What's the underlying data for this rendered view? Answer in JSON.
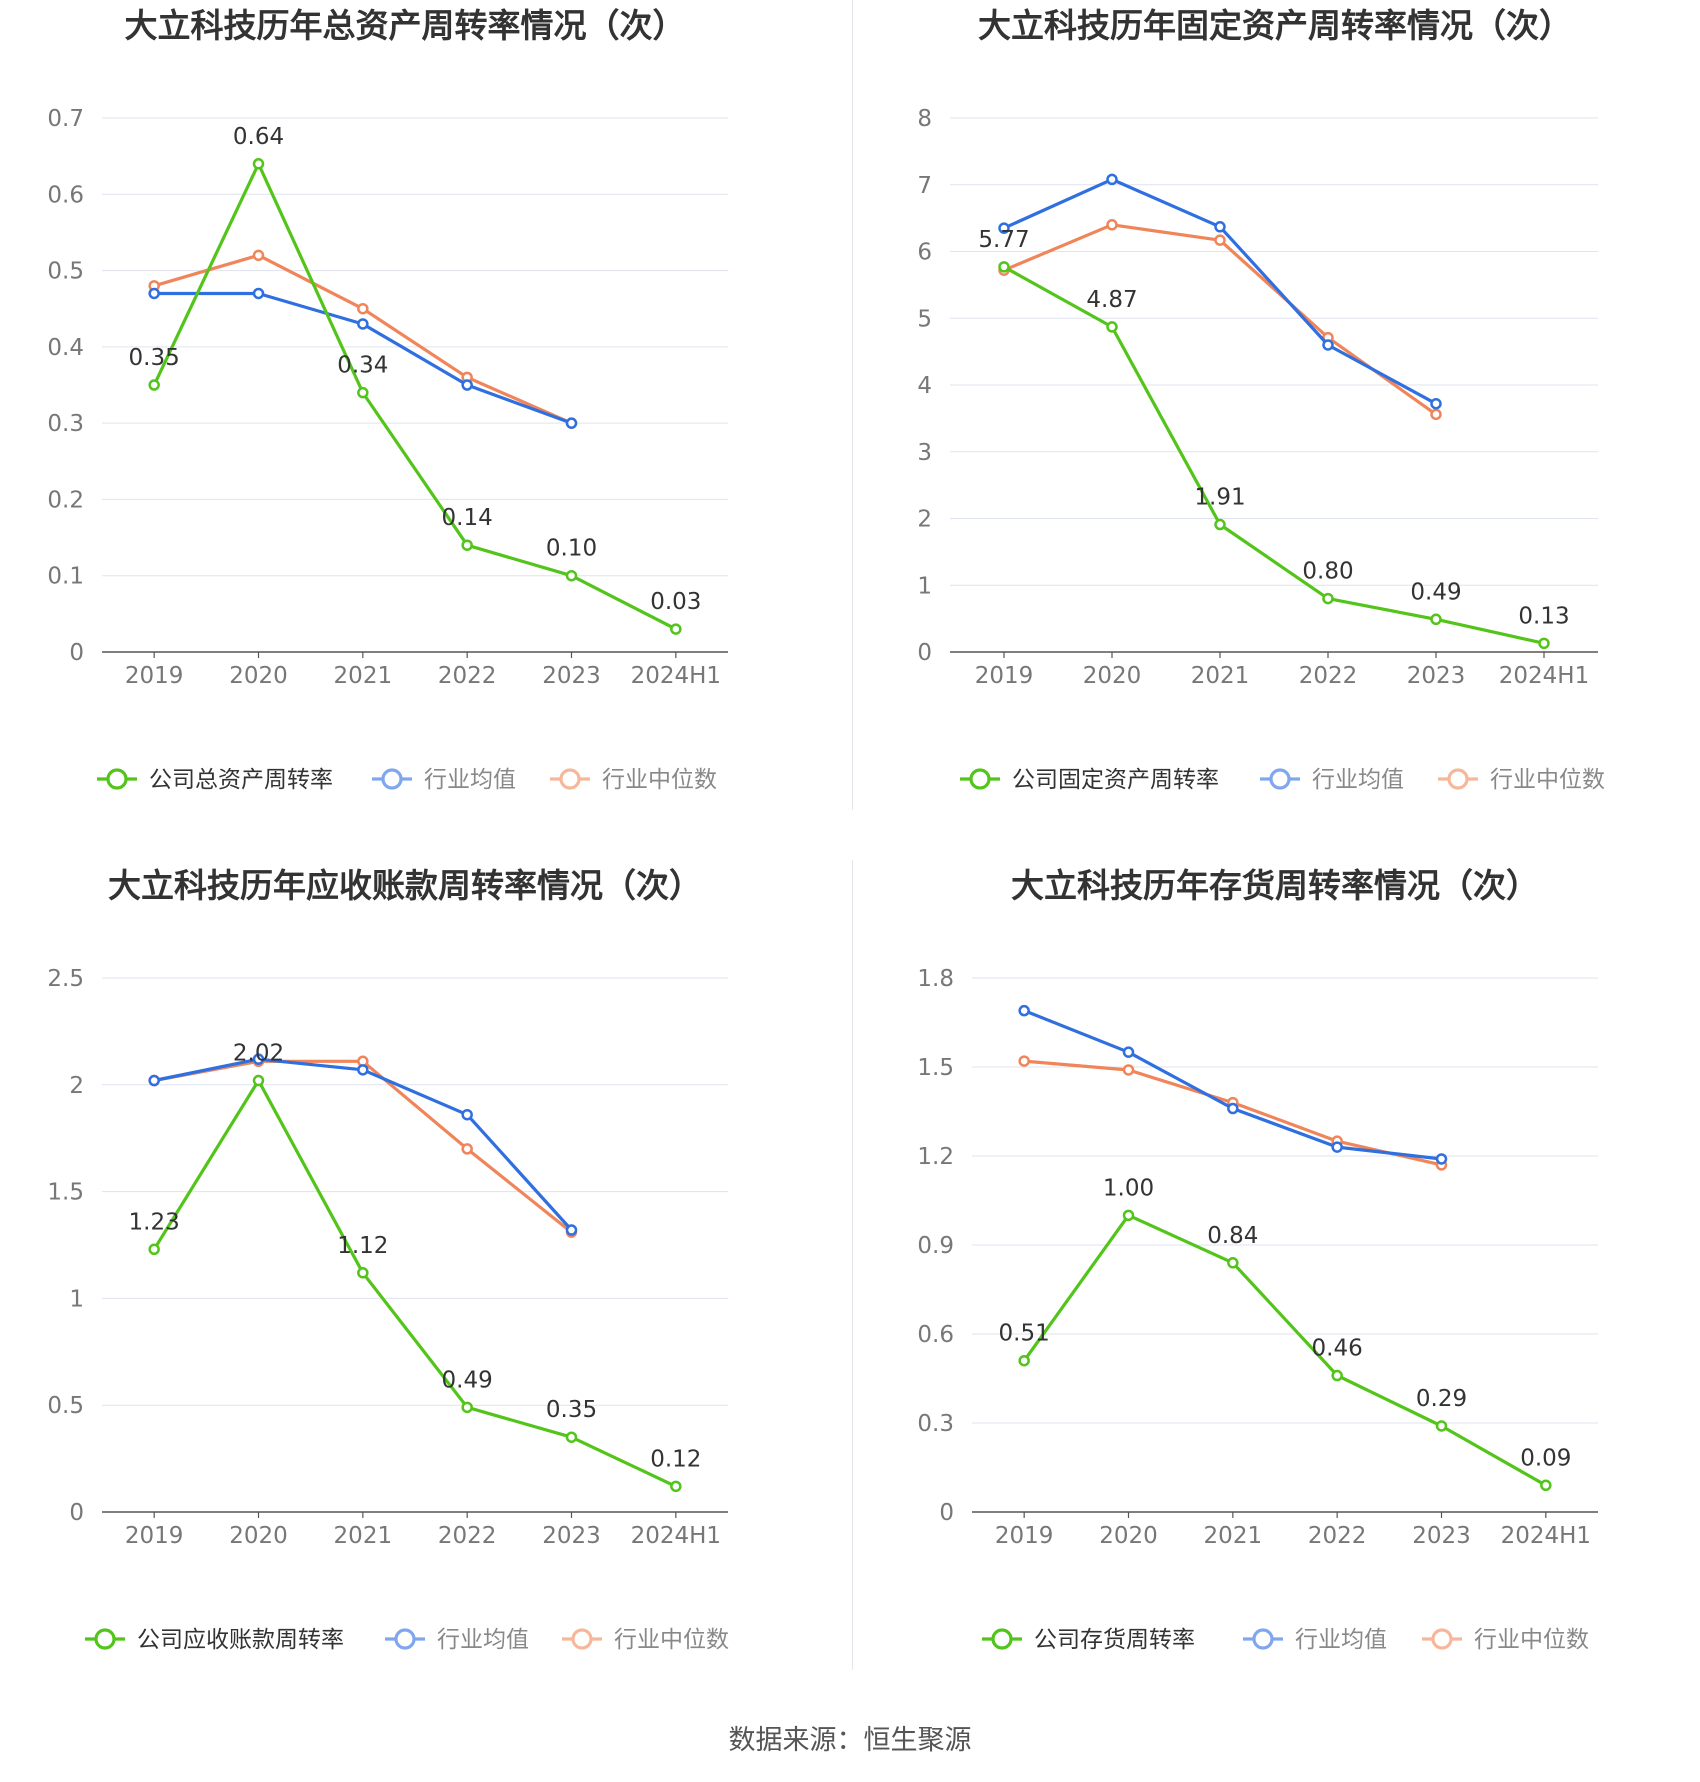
{
  "source_text": "数据来源：恒生聚源",
  "colors": {
    "company": "#52c41a",
    "industry_avg": "#2f6fdf",
    "industry_median": "#f0855a",
    "legend_avg": "#7fa6ee",
    "legend_median": "#f7b79a",
    "grid": "#dfe3ee",
    "axis": "#555555",
    "tick_text": "#777777",
    "title_text": "#333333"
  },
  "chart_data": [
    {
      "type": "line",
      "title": "大立科技历年总资产周转率情况（次）",
      "categories": [
        "2019",
        "2020",
        "2021",
        "2022",
        "2023",
        "2024H1"
      ],
      "ylim": [
        0,
        0.7
      ],
      "yticks": [
        "0",
        "0.1",
        "0.2",
        "0.3",
        "0.4",
        "0.5",
        "0.6",
        "0.7"
      ],
      "grid": true,
      "legend_position": "bottom",
      "series": [
        {
          "name": "公司总资产周转率",
          "role": "company",
          "values": [
            0.35,
            0.64,
            0.34,
            0.14,
            0.1,
            0.03
          ],
          "labels": [
            "0.35",
            "0.64",
            "0.34",
            "0.14",
            "0.10",
            "0.03"
          ]
        },
        {
          "name": "行业均值",
          "role": "industry_avg",
          "values": [
            0.47,
            0.47,
            0.43,
            0.35,
            0.3,
            null
          ]
        },
        {
          "name": "行业中位数",
          "role": "industry_median",
          "values": [
            0.48,
            0.52,
            0.45,
            0.36,
            0.3,
            null
          ]
        }
      ]
    },
    {
      "type": "line",
      "title": "大立科技历年固定资产周转率情况（次）",
      "categories": [
        "2019",
        "2020",
        "2021",
        "2022",
        "2023",
        "2024H1"
      ],
      "ylim": [
        0,
        8
      ],
      "yticks": [
        "0",
        "1",
        "2",
        "3",
        "4",
        "5",
        "6",
        "7",
        "8"
      ],
      "grid": true,
      "legend_position": "bottom",
      "series": [
        {
          "name": "公司固定资产周转率",
          "role": "company",
          "values": [
            5.77,
            4.87,
            1.91,
            0.8,
            0.49,
            0.13
          ],
          "labels": [
            "5.77",
            "4.87",
            "1.91",
            "0.80",
            "0.49",
            "0.13"
          ]
        },
        {
          "name": "行业均值",
          "role": "industry_avg",
          "values": [
            6.35,
            7.08,
            6.37,
            4.6,
            3.72,
            null
          ]
        },
        {
          "name": "行业中位数",
          "role": "industry_median",
          "values": [
            5.72,
            6.4,
            6.17,
            4.71,
            3.56,
            null
          ]
        }
      ]
    },
    {
      "type": "line",
      "title": "大立科技历年应收账款周转率情况（次）",
      "categories": [
        "2019",
        "2020",
        "2021",
        "2022",
        "2023",
        "2024H1"
      ],
      "ylim": [
        0,
        2.5
      ],
      "yticks": [
        "0",
        "0.5",
        "1",
        "1.5",
        "2",
        "2.5"
      ],
      "grid": true,
      "legend_position": "bottom",
      "series": [
        {
          "name": "公司应收账款周转率",
          "role": "company",
          "values": [
            1.23,
            2.02,
            1.12,
            0.49,
            0.35,
            0.12
          ],
          "labels": [
            "1.23",
            "2.02",
            "1.12",
            "0.49",
            "0.35",
            "0.12"
          ]
        },
        {
          "name": "行业均值",
          "role": "industry_avg",
          "values": [
            2.02,
            2.12,
            2.07,
            1.86,
            1.32,
            null
          ]
        },
        {
          "name": "行业中位数",
          "role": "industry_median",
          "values": [
            2.02,
            2.11,
            2.11,
            1.7,
            1.31,
            null
          ]
        }
      ]
    },
    {
      "type": "line",
      "title": "大立科技历年存货周转率情况（次）",
      "categories": [
        "2019",
        "2020",
        "2021",
        "2022",
        "2023",
        "2024H1"
      ],
      "ylim": [
        0,
        1.8
      ],
      "yticks": [
        "0",
        "0.3",
        "0.6",
        "0.9",
        "1.2",
        "1.5",
        "1.8"
      ],
      "grid": true,
      "legend_position": "bottom",
      "series": [
        {
          "name": "公司存货周转率",
          "role": "company",
          "values": [
            0.51,
            1.0,
            0.84,
            0.46,
            0.29,
            0.09
          ],
          "labels": [
            "0.51",
            "1.00",
            "0.84",
            "0.46",
            "0.29",
            "0.09"
          ]
        },
        {
          "name": "行业均值",
          "role": "industry_avg",
          "values": [
            1.69,
            1.55,
            1.36,
            1.23,
            1.19,
            null
          ]
        },
        {
          "name": "行业中位数",
          "role": "industry_median",
          "values": [
            1.52,
            1.49,
            1.38,
            1.25,
            1.17,
            null
          ]
        }
      ]
    }
  ]
}
